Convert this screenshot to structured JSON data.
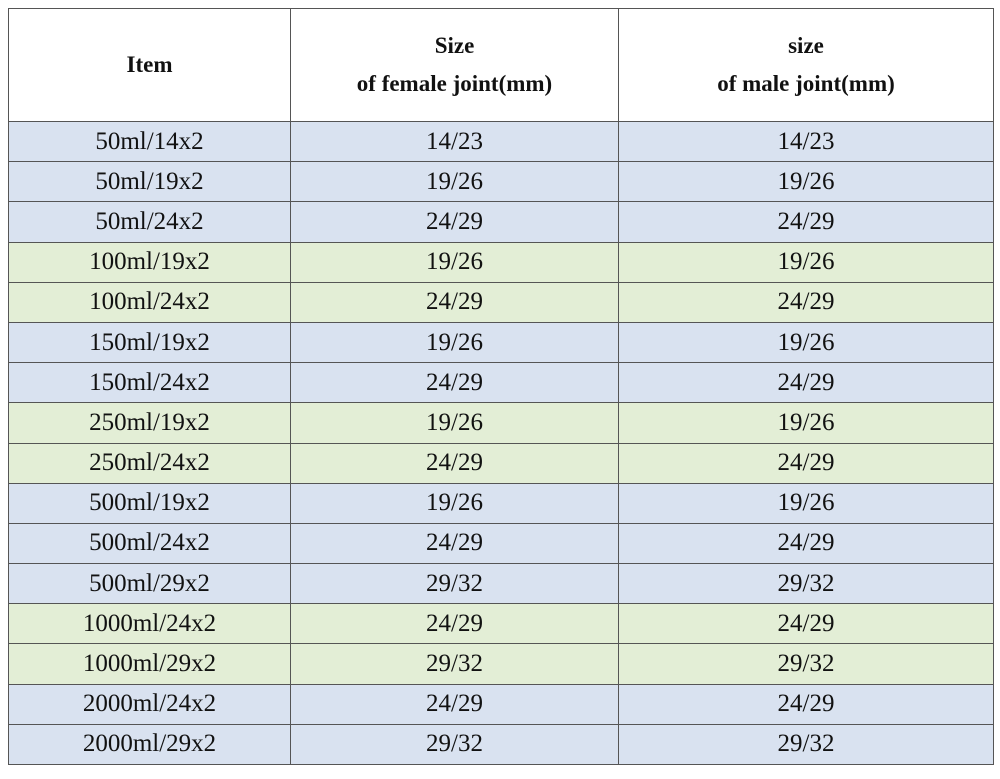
{
  "table": {
    "header": [
      [
        "Item"
      ],
      [
        "Size",
        "of female joint(mm)"
      ],
      [
        "size",
        "of male joint(mm)"
      ]
    ],
    "rows": [
      [
        "50ml/14x2",
        "14/23",
        "14/23"
      ],
      [
        "50ml/19x2",
        "19/26",
        "19/26"
      ],
      [
        "50ml/24x2",
        "24/29",
        "24/29"
      ],
      [
        "100ml/19x2",
        "19/26",
        "19/26"
      ],
      [
        "100ml/24x2",
        "24/29",
        "24/29"
      ],
      [
        "150ml/19x2",
        "19/26",
        "19/26"
      ],
      [
        "150ml/24x2",
        "24/29",
        "24/29"
      ],
      [
        "250ml/19x2",
        "19/26",
        "19/26"
      ],
      [
        "250ml/24x2",
        "24/29",
        "24/29"
      ],
      [
        "500ml/19x2",
        "19/26",
        "19/26"
      ],
      [
        "500ml/24x2",
        "24/29",
        "24/29"
      ],
      [
        "500ml/29x2",
        "29/32",
        "29/32"
      ],
      [
        "1000ml/24x2",
        "24/29",
        "24/29"
      ],
      [
        "1000ml/29x2",
        "29/32",
        "29/32"
      ],
      [
        "2000ml/24x2",
        "24/29",
        "24/29"
      ],
      [
        "2000ml/29x2",
        "29/32",
        "29/32"
      ]
    ],
    "row_colors": [
      "#d9e2f0",
      "#d9e2f0",
      "#d9e2f0",
      "#e3eed6",
      "#e3eed6",
      "#d9e2f0",
      "#d9e2f0",
      "#e3eed6",
      "#e3eed6",
      "#d9e2f0",
      "#d9e2f0",
      "#d9e2f0",
      "#e3eed6",
      "#e3eed6",
      "#d9e2f0",
      "#d9e2f0"
    ]
  }
}
